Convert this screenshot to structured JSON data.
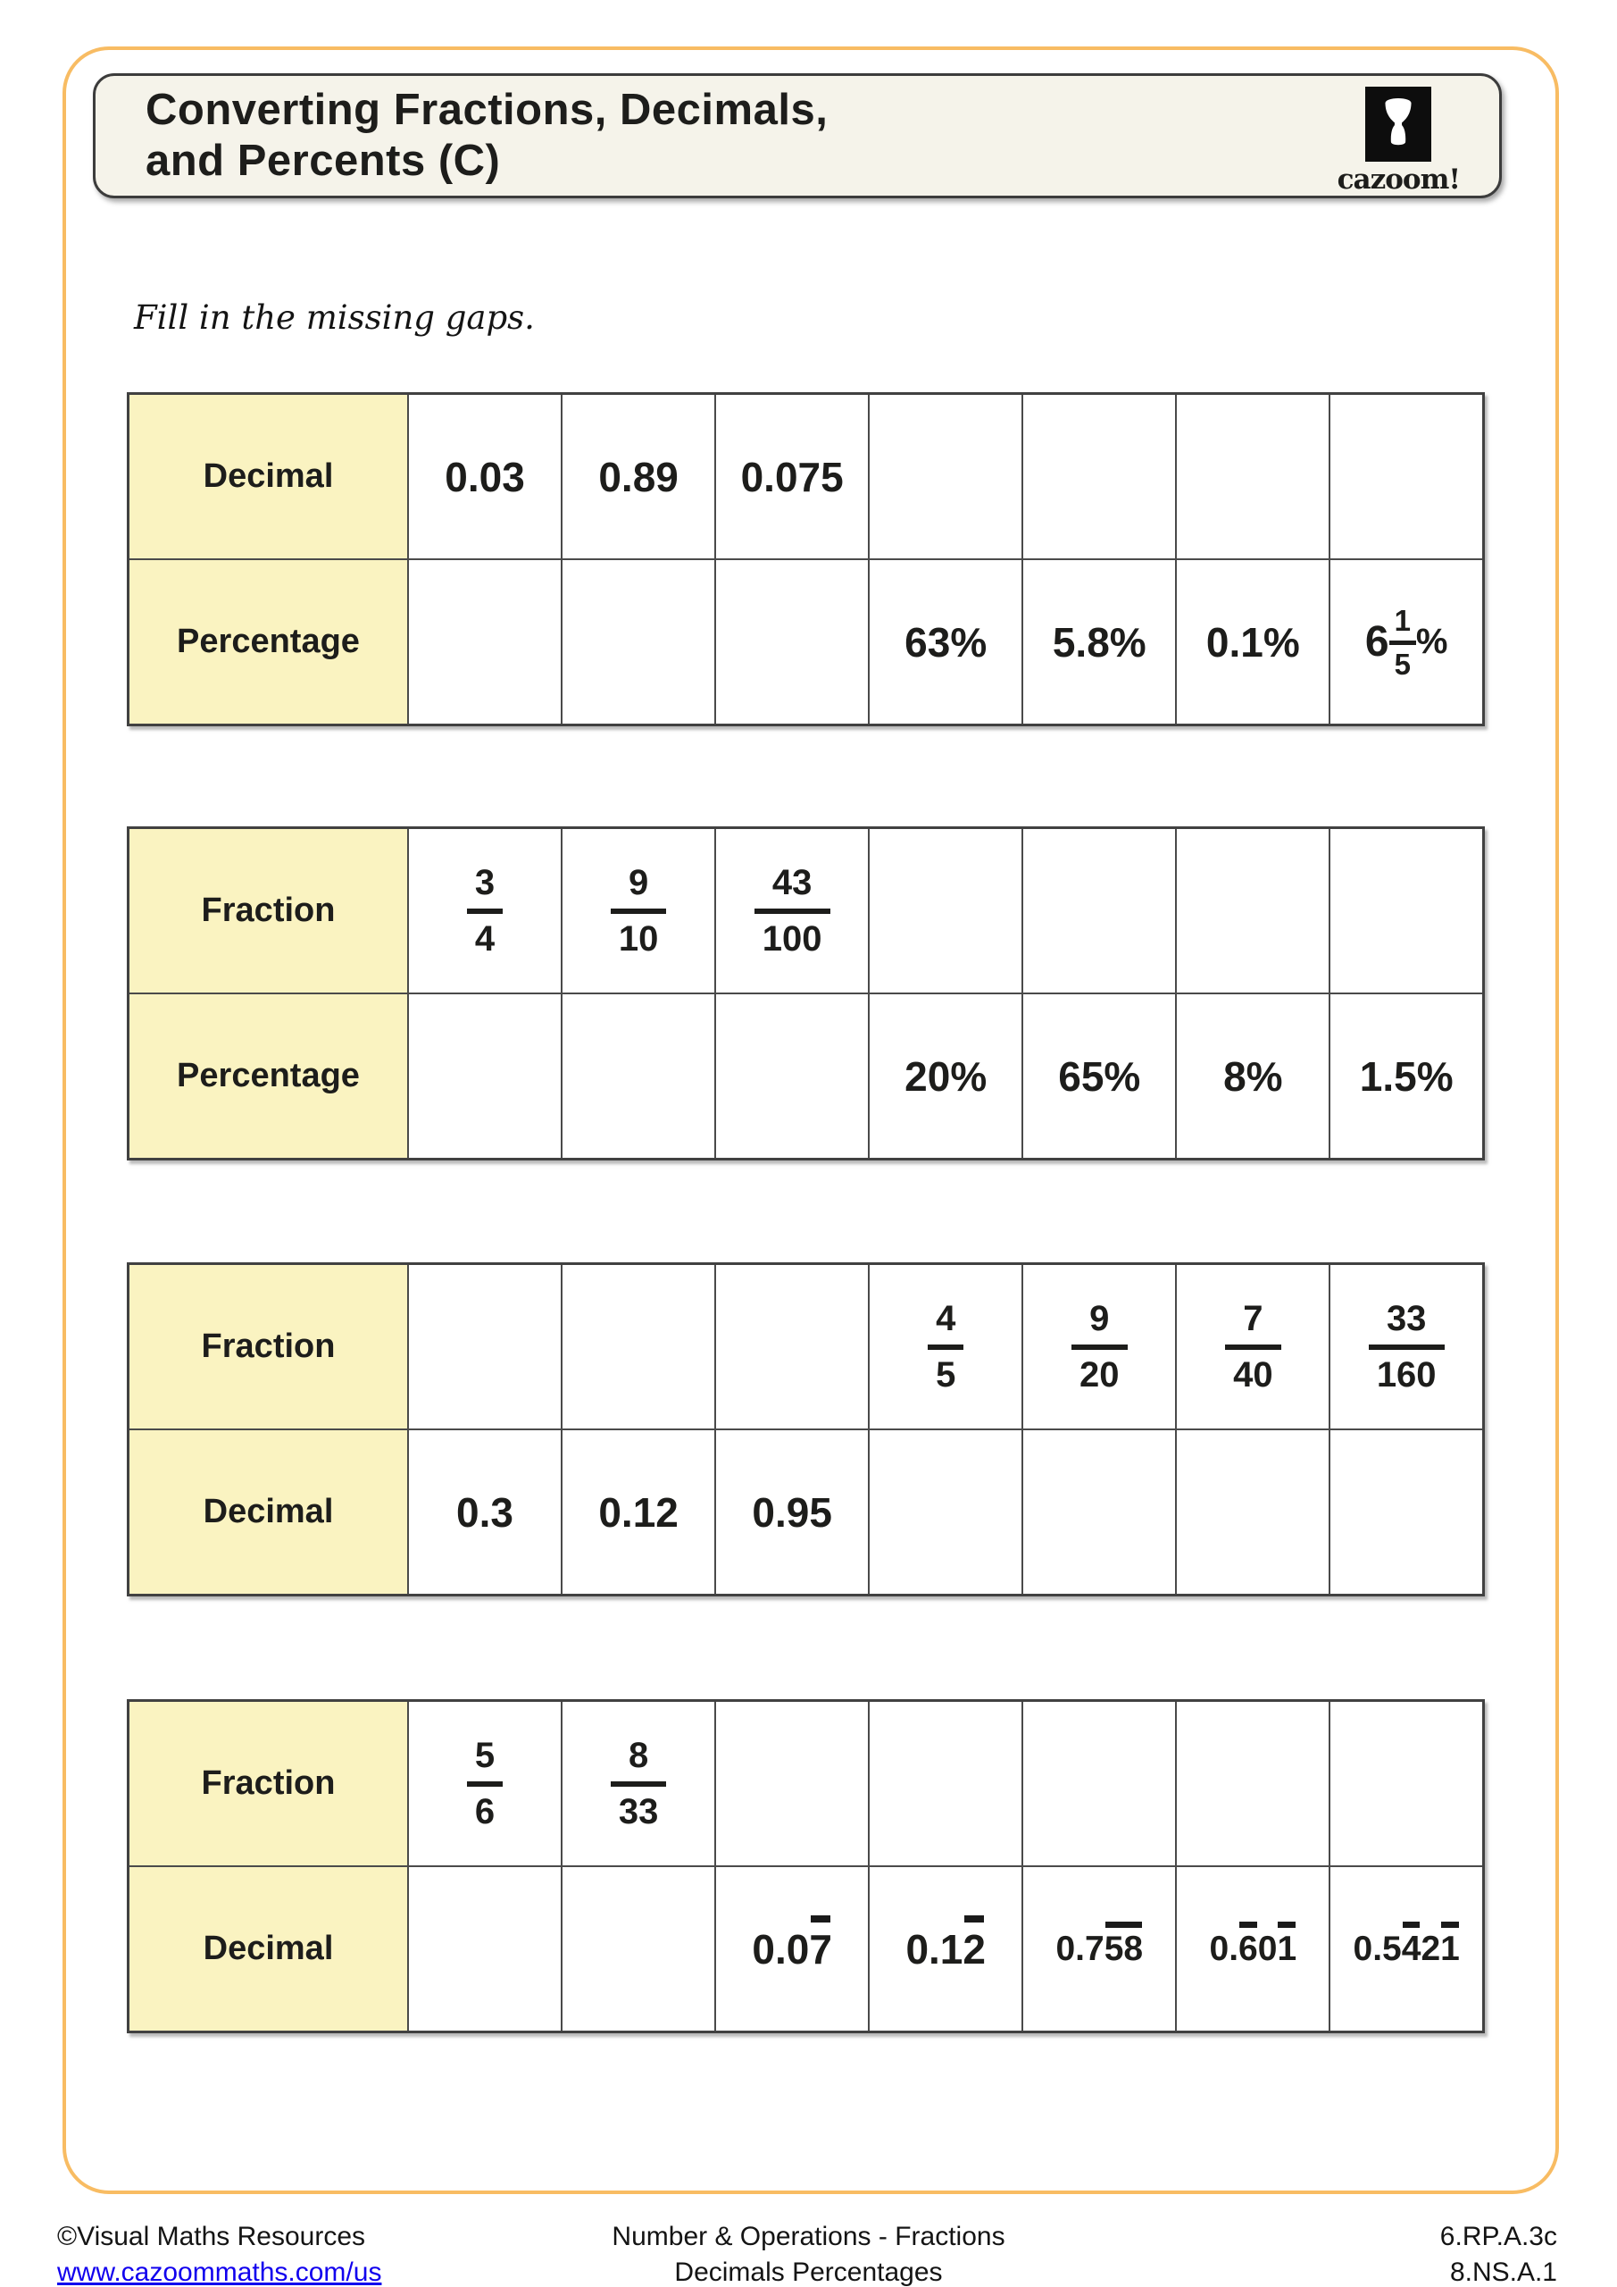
{
  "page": {
    "title_line1": "Converting Fractions, Decimals,",
    "title_line2": "and Percents (C)",
    "logo_text": "cazoom!",
    "logo_icon": "djembe-drum-icon",
    "instruction": "Fill in the missing gaps.",
    "colors": {
      "accent_border": "#F8BC63",
      "header_cell": "#FAF3C1",
      "title_box_bg": "#F5F3EA",
      "table_border": "#4A4A4A",
      "link": "#1100EE"
    }
  },
  "tables": [
    {
      "name": "decimal-percentage",
      "rows": [
        {
          "header": "Decimal",
          "cells": [
            {
              "type": "text",
              "value": "0.03"
            },
            {
              "type": "text",
              "value": "0.89"
            },
            {
              "type": "text",
              "value": "0.075"
            },
            {
              "type": "blank"
            },
            {
              "type": "blank"
            },
            {
              "type": "blank"
            },
            {
              "type": "blank"
            }
          ]
        },
        {
          "header": "Percentage",
          "cells": [
            {
              "type": "blank"
            },
            {
              "type": "blank"
            },
            {
              "type": "blank"
            },
            {
              "type": "text",
              "value": "63%"
            },
            {
              "type": "text",
              "value": "5.8%"
            },
            {
              "type": "text",
              "value": "0.1%"
            },
            {
              "type": "mixed",
              "whole": "6",
              "num": "1",
              "den": "5",
              "suffix": "%"
            }
          ]
        }
      ]
    },
    {
      "name": "fraction-percentage",
      "rows": [
        {
          "header": "Fraction",
          "cells": [
            {
              "type": "fraction",
              "num": "3",
              "den": "4"
            },
            {
              "type": "fraction",
              "num": "9",
              "den": "10"
            },
            {
              "type": "fraction",
              "num": "43",
              "den": "100"
            },
            {
              "type": "blank"
            },
            {
              "type": "blank"
            },
            {
              "type": "blank"
            },
            {
              "type": "blank"
            }
          ]
        },
        {
          "header": "Percentage",
          "cells": [
            {
              "type": "blank"
            },
            {
              "type": "blank"
            },
            {
              "type": "blank"
            },
            {
              "type": "text",
              "value": "20%"
            },
            {
              "type": "text",
              "value": "65%"
            },
            {
              "type": "text",
              "value": "8%"
            },
            {
              "type": "text",
              "value": "1.5%"
            }
          ]
        }
      ]
    },
    {
      "name": "fraction-decimal",
      "rows": [
        {
          "header": "Fraction",
          "cells": [
            {
              "type": "blank"
            },
            {
              "type": "blank"
            },
            {
              "type": "blank"
            },
            {
              "type": "fraction",
              "num": "4",
              "den": "5"
            },
            {
              "type": "fraction",
              "num": "9",
              "den": "20"
            },
            {
              "type": "fraction",
              "num": "7",
              "den": "40"
            },
            {
              "type": "fraction",
              "num": "33",
              "den": "160"
            }
          ]
        },
        {
          "header": "Decimal",
          "cells": [
            {
              "type": "text",
              "value": "0.3"
            },
            {
              "type": "text",
              "value": "0.12"
            },
            {
              "type": "text",
              "value": "0.95"
            },
            {
              "type": "blank"
            },
            {
              "type": "blank"
            },
            {
              "type": "blank"
            },
            {
              "type": "blank"
            }
          ]
        }
      ]
    },
    {
      "name": "fraction-recurring-decimal",
      "rows": [
        {
          "header": "Fraction",
          "cells": [
            {
              "type": "fraction",
              "num": "5",
              "den": "6"
            },
            {
              "type": "fraction",
              "num": "8",
              "den": "33"
            },
            {
              "type": "blank"
            },
            {
              "type": "blank"
            },
            {
              "type": "blank"
            },
            {
              "type": "blank"
            },
            {
              "type": "blank"
            }
          ]
        },
        {
          "header": "Decimal",
          "cells": [
            {
              "type": "blank"
            },
            {
              "type": "blank"
            },
            {
              "type": "rdecimal",
              "segments": [
                {
                  "text": "0.0"
                },
                {
                  "text": "7",
                  "bar": true
                }
              ]
            },
            {
              "type": "rdecimal",
              "segments": [
                {
                  "text": "0.1"
                },
                {
                  "text": "2",
                  "bar": true
                }
              ]
            },
            {
              "type": "rdecimal",
              "segments": [
                {
                  "text": "0.7"
                },
                {
                  "text": "58",
                  "bar": true
                }
              ]
            },
            {
              "type": "rdecimal",
              "segments": [
                {
                  "text": "0."
                },
                {
                  "text": "6",
                  "bar": true
                },
                {
                  "text": "0"
                },
                {
                  "text": "1",
                  "bar": true
                }
              ]
            },
            {
              "type": "rdecimal",
              "segments": [
                {
                  "text": "0.5"
                },
                {
                  "text": "4",
                  "bar": true
                },
                {
                  "text": "2"
                },
                {
                  "text": "1",
                  "bar": true
                }
              ]
            }
          ]
        }
      ]
    }
  ],
  "footer": {
    "copyright": "©Visual Maths Resources",
    "link": "www.cazoommaths.com/us",
    "center_line1": "Number & Operations - Fractions",
    "center_line2": "Decimals Percentages",
    "right_line1": "6.RP.A.3c",
    "right_line2": "8.NS.A.1"
  }
}
